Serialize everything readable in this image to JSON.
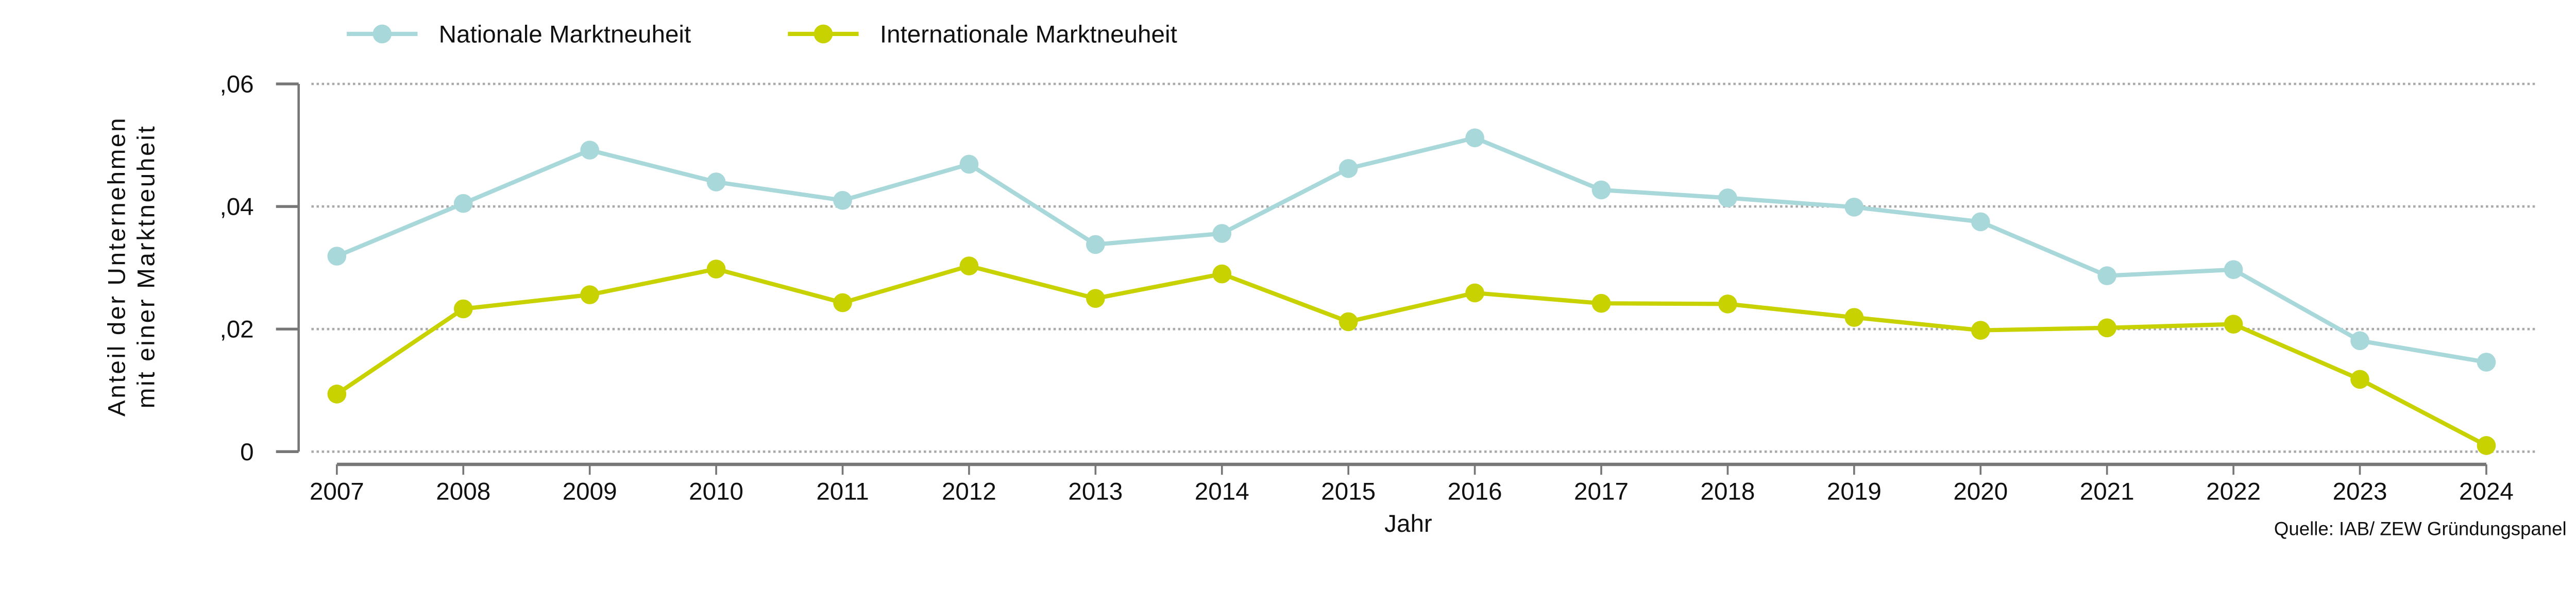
{
  "chart_data": {
    "type": "line",
    "title": "",
    "xlabel": "Jahr",
    "ylabel": [
      "Anteil der Unternehmen",
      "mit einer Marktneuheit"
    ],
    "source": "Quelle: IAB/ ZEW Gründungspanel",
    "categories": [
      "2007",
      "2008",
      "2009",
      "2010",
      "2011",
      "2012",
      "2013",
      "2014",
      "2015",
      "2016",
      "2017",
      "2018",
      "2019",
      "2020",
      "2021",
      "2022",
      "2023",
      "2024"
    ],
    "ylim": [
      0,
      0.06
    ],
    "yticks": [
      0,
      0.02,
      0.04,
      0.06
    ],
    "ytick_labels": [
      "0",
      ",02",
      ",04",
      ",06"
    ],
    "grid": true,
    "legend_position": "top",
    "series": [
      {
        "name": "Nationale Marktneuheit",
        "color": "#a8d8da",
        "values": [
          0.0319,
          0.0405,
          0.0492,
          0.044,
          0.041,
          0.0469,
          0.0338,
          0.0356,
          0.0462,
          0.0512,
          0.0427,
          0.0414,
          0.0399,
          0.0375,
          0.0287,
          0.0297,
          0.0181,
          0.0146
        ]
      },
      {
        "name": "Internationale Marktneuheit",
        "color": "#c8d200",
        "values": [
          0.0094,
          0.0233,
          0.0256,
          0.0298,
          0.0243,
          0.0303,
          0.025,
          0.029,
          0.0212,
          0.0259,
          0.0242,
          0.0241,
          0.0219,
          0.0198,
          0.0202,
          0.0208,
          0.0118,
          0.001
        ]
      }
    ]
  }
}
